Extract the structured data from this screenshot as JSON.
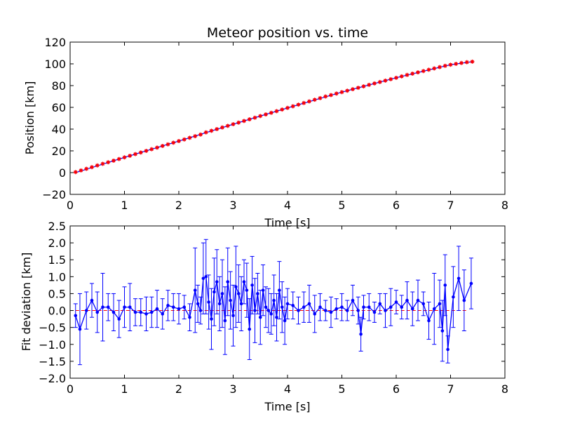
{
  "chart_data": [
    {
      "type": "scatter",
      "title": "Meteor position vs. time",
      "xlabel": "Time [s]",
      "ylabel": "Position [km]",
      "xlim": [
        0,
        8
      ],
      "ylim": [
        -20,
        120
      ],
      "xticks": [
        "0",
        "1",
        "2",
        "3",
        "4",
        "5",
        "6",
        "7",
        "8"
      ],
      "yticks": [
        "−20",
        "0",
        "20",
        "40",
        "60",
        "80",
        "100",
        "120"
      ],
      "colors": {
        "points": "#0000ff",
        "fit": "#ff0000"
      },
      "series": [
        {
          "marker": "dot",
          "x": [
            0.1,
            0.2,
            0.3,
            0.4,
            0.5,
            0.6,
            0.7,
            0.8,
            0.9,
            1.0,
            1.1,
            1.2,
            1.3,
            1.4,
            1.5,
            1.6,
            1.7,
            1.8,
            1.9,
            2.0,
            2.1,
            2.2,
            2.3,
            2.4,
            2.5,
            2.6,
            2.7,
            2.8,
            2.9,
            3.0,
            3.1,
            3.2,
            3.3,
            3.4,
            3.5,
            3.6,
            3.7,
            3.8,
            3.9,
            4.0,
            4.1,
            4.2,
            4.3,
            4.4,
            4.5,
            4.6,
            4.7,
            4.8,
            4.9,
            5.0,
            5.1,
            5.2,
            5.3,
            5.4,
            5.5,
            5.6,
            5.7,
            5.8,
            5.9,
            6.0,
            6.1,
            6.2,
            6.3,
            6.4,
            6.5,
            6.6,
            6.7,
            6.8,
            6.9,
            7.0,
            7.1,
            7.2,
            7.3,
            7.4
          ],
          "y": [
            0.5,
            2.0,
            3.5,
            5.0,
            6.6,
            8.1,
            9.5,
            11.0,
            12.5,
            14.0,
            15.5,
            17.0,
            18.5,
            20.0,
            21.5,
            23.0,
            24.5,
            26.0,
            27.5,
            29.0,
            30.5,
            32.0,
            33.5,
            35.0,
            37.0,
            38.5,
            40.0,
            41.5,
            43.0,
            44.5,
            46.0,
            47.5,
            49.0,
            50.5,
            52.0,
            53.5,
            55.0,
            56.5,
            58.0,
            59.5,
            61.0,
            62.5,
            64.0,
            65.5,
            67.0,
            68.5,
            70.0,
            71.3,
            72.7,
            74.0,
            75.3,
            76.7,
            78.0,
            79.3,
            80.7,
            82.0,
            83.3,
            84.6,
            85.9,
            87.2,
            88.5,
            89.8,
            91.0,
            92.2,
            93.4,
            94.6,
            95.8,
            97.0,
            98.2,
            99.2,
            100.0,
            100.8,
            101.5,
            102.0
          ]
        },
        {
          "marker": "line",
          "x": [
            0.1,
            1.0,
            2.0,
            3.0,
            4.0,
            5.0,
            6.0,
            7.0,
            7.4
          ],
          "y": [
            0.0,
            14.0,
            29.0,
            44.5,
            59.5,
            74.0,
            87.2,
            99.2,
            102.0
          ]
        }
      ]
    },
    {
      "type": "line",
      "title": "",
      "xlabel": "Time [s]",
      "ylabel": "Fit deviation [km]",
      "xlim": [
        0,
        8
      ],
      "ylim": [
        -2.0,
        2.5
      ],
      "xticks": [
        "0",
        "1",
        "2",
        "3",
        "4",
        "5",
        "6",
        "7",
        "8"
      ],
      "yticks": [
        "−2.0",
        "−1.5",
        "−1.0",
        "−0.5",
        "0.0",
        "0.5",
        "1.0",
        "1.5",
        "2.0",
        "2.5"
      ],
      "colors": {
        "points": "#0000ff",
        "zero_line": "#ff0000"
      },
      "zero_line": {
        "x": [
          0.1,
          7.3
        ],
        "y": 0
      },
      "series": [
        {
          "x": [
            0.1,
            0.18,
            0.3,
            0.4,
            0.5,
            0.6,
            0.7,
            0.8,
            0.9,
            1.0,
            1.1,
            1.2,
            1.3,
            1.4,
            1.5,
            1.6,
            1.7,
            1.8,
            1.9,
            2.0,
            2.1,
            2.2,
            2.3,
            2.35,
            2.4,
            2.45,
            2.5,
            2.55,
            2.6,
            2.65,
            2.7,
            2.75,
            2.8,
            2.85,
            2.9,
            2.95,
            3.0,
            3.05,
            3.1,
            3.15,
            3.2,
            3.25,
            3.3,
            3.35,
            3.4,
            3.45,
            3.5,
            3.55,
            3.6,
            3.65,
            3.7,
            3.75,
            3.8,
            3.85,
            3.9,
            3.95,
            4.0,
            4.1,
            4.2,
            4.3,
            4.4,
            4.5,
            4.6,
            4.7,
            4.8,
            4.9,
            5.0,
            5.1,
            5.2,
            5.3,
            5.35,
            5.4,
            5.5,
            5.6,
            5.7,
            5.8,
            5.9,
            6.0,
            6.1,
            6.2,
            6.3,
            6.4,
            6.5,
            6.6,
            6.7,
            6.8,
            6.85,
            6.9,
            6.95,
            7.05,
            7.15,
            7.25,
            7.38
          ],
          "y": [
            -0.15,
            -0.55,
            0.0,
            0.3,
            -0.05,
            0.1,
            0.1,
            -0.05,
            -0.25,
            0.1,
            0.1,
            -0.05,
            -0.05,
            -0.1,
            -0.05,
            0.05,
            -0.1,
            0.15,
            0.1,
            0.05,
            0.1,
            -0.2,
            0.6,
            0.2,
            0.0,
            0.95,
            1.0,
            0.25,
            -0.25,
            0.55,
            0.85,
            0.2,
            0.5,
            -0.3,
            0.85,
            0.3,
            -0.15,
            0.7,
            0.5,
            0.2,
            0.85,
            0.6,
            -0.55,
            0.75,
            0.0,
            0.5,
            -0.2,
            0.6,
            0.1,
            0.0,
            -0.1,
            0.3,
            -0.2,
            0.6,
            0.1,
            -0.3,
            0.2,
            0.15,
            0.0,
            0.1,
            0.2,
            -0.1,
            0.1,
            0.0,
            -0.05,
            0.05,
            0.1,
            0.0,
            0.3,
            0.0,
            -0.7,
            0.1,
            0.1,
            -0.05,
            0.2,
            0.0,
            0.1,
            0.25,
            0.1,
            0.3,
            0.05,
            0.3,
            0.2,
            -0.3,
            0.05,
            0.2,
            -0.6,
            0.75,
            -1.15,
            0.4,
            0.95,
            0.3,
            0.8
          ],
          "err": [
            0.35,
            1.05,
            0.55,
            0.5,
            0.6,
            1.0,
            0.4,
            0.55,
            0.55,
            0.6,
            0.7,
            0.4,
            0.4,
            0.5,
            0.45,
            0.55,
            0.45,
            0.45,
            0.4,
            0.45,
            0.35,
            0.4,
            1.25,
            0.55,
            0.4,
            1.05,
            1.1,
            0.8,
            0.9,
            1.0,
            0.95,
            0.8,
            1.0,
            1.0,
            1.0,
            0.85,
            0.9,
            1.2,
            0.85,
            0.8,
            0.65,
            0.8,
            0.9,
            0.85,
            0.95,
            0.6,
            0.8,
            0.75,
            0.6,
            0.65,
            0.6,
            0.75,
            0.7,
            0.85,
            0.75,
            0.7,
            0.45,
            0.4,
            0.4,
            0.45,
            0.55,
            0.55,
            0.4,
            0.3,
            0.45,
            0.3,
            0.4,
            0.3,
            0.45,
            0.4,
            0.5,
            0.35,
            0.4,
            0.3,
            0.3,
            0.5,
            0.55,
            0.35,
            0.35,
            0.55,
            0.5,
            0.6,
            0.35,
            0.55,
            1.05,
            0.7,
            0.9,
            0.9,
            0.4,
            0.9,
            0.95,
            0.9,
            0.75
          ]
        }
      ]
    }
  ]
}
